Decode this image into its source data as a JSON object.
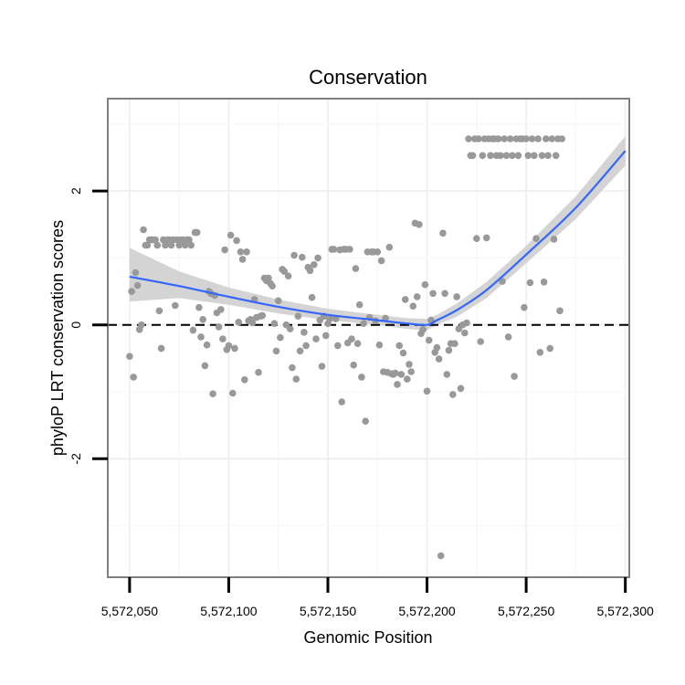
{
  "colors": {
    "points": "#999999",
    "smooth_line": "#3366FF",
    "ribbon": "#cccccc",
    "zero_line": "#000000",
    "panel_border": "#7f7f7f",
    "grid_major": "#f0f0f0",
    "grid_minor": "#f8f8f8"
  },
  "chart_data": {
    "type": "scatter",
    "title": "Conservation",
    "xlabel": "Genomic Position",
    "ylabel": "phyloP LRT conservation scores",
    "xlim": [
      5572039,
      5572302
    ],
    "ylim": [
      -3.77,
      3.38
    ],
    "x_ticks": [
      5572050,
      5572100,
      5572150,
      5572200,
      5572250,
      5572300
    ],
    "x_tick_labels": [
      "5,572,050",
      "5,572,100",
      "5,572,150",
      "5,572,200",
      "5,572,250",
      "5,572,300"
    ],
    "y_ticks": [
      -2,
      0,
      2
    ],
    "y_tick_labels": [
      "-2",
      "0",
      "2"
    ],
    "reference_line": {
      "y": 0,
      "style": "dashed"
    },
    "grid": true,
    "points": [
      [
        5572050,
        -0.47
      ],
      [
        5572051,
        0.5
      ],
      [
        5572052,
        -0.78
      ],
      [
        5572053,
        0.78
      ],
      [
        5572054,
        0.59
      ],
      [
        5572055,
        -0.07
      ],
      [
        5572056,
        0.0
      ],
      [
        5572057,
        1.42
      ],
      [
        5572058,
        1.19
      ],
      [
        5572059,
        1.19
      ],
      [
        5572060,
        1.27
      ],
      [
        5572061,
        1.27
      ],
      [
        5572062,
        1.27
      ],
      [
        5572063,
        1.27
      ],
      [
        5572064,
        1.19
      ],
      [
        5572065,
        0.21
      ],
      [
        5572066,
        -0.35
      ],
      [
        5572067,
        1.27
      ],
      [
        5572068,
        1.19
      ],
      [
        5572069,
        1.27
      ],
      [
        5572070,
        1.27
      ],
      [
        5572071,
        1.19
      ],
      [
        5572072,
        1.27
      ],
      [
        5572073,
        0.29
      ],
      [
        5572074,
        1.27
      ],
      [
        5572075,
        1.19
      ],
      [
        5572076,
        1.27
      ],
      [
        5572077,
        1.27
      ],
      [
        5572078,
        1.19
      ],
      [
        5572079,
        1.27
      ],
      [
        5572080,
        1.27
      ],
      [
        5572081,
        1.19
      ],
      [
        5572082,
        -0.08
      ],
      [
        5572083,
        1.38
      ],
      [
        5572084,
        1.38
      ],
      [
        5572085,
        0.26
      ],
      [
        5572086,
        -0.18
      ],
      [
        5572087,
        0.08
      ],
      [
        5572088,
        -0.61
      ],
      [
        5572089,
        -0.3
      ],
      [
        5572090,
        0.5
      ],
      [
        5572091,
        0.47
      ],
      [
        5572092,
        -1.03
      ],
      [
        5572093,
        0.44
      ],
      [
        5572094,
        0.18
      ],
      [
        5572095,
        -0.03
      ],
      [
        5572096,
        0.23
      ],
      [
        5572097,
        -0.21
      ],
      [
        5572098,
        1.12
      ],
      [
        5572099,
        -0.37
      ],
      [
        5572100,
        -0.31
      ],
      [
        5572101,
        1.34
      ],
      [
        5572102,
        -1.02
      ],
      [
        5572103,
        -0.35
      ],
      [
        5572104,
        1.26
      ],
      [
        5572105,
        0.04
      ],
      [
        5572106,
        1.09
      ],
      [
        5572107,
        0.98
      ],
      [
        5572108,
        -0.82
      ],
      [
        5572109,
        1.09
      ],
      [
        5572110,
        0.06
      ],
      [
        5572111,
        0.08
      ],
      [
        5572112,
        0.03
      ],
      [
        5572113,
        0.38
      ],
      [
        5572114,
        0.11
      ],
      [
        5572115,
        -0.71
      ],
      [
        5572116,
        0.13
      ],
      [
        5572117,
        0.14
      ],
      [
        5572118,
        0.7
      ],
      [
        5572119,
        0.66
      ],
      [
        5572120,
        0.7
      ],
      [
        5572121,
        0.62
      ],
      [
        5572122,
        0.58
      ],
      [
        5572123,
        0.02
      ],
      [
        5572124,
        -0.39
      ],
      [
        5572125,
        0.36
      ],
      [
        5572126,
        -0.19
      ],
      [
        5572127,
        0.83
      ],
      [
        5572128,
        0.8
      ],
      [
        5572129,
        0.0
      ],
      [
        5572130,
        0.73
      ],
      [
        5572131,
        -0.06
      ],
      [
        5572132,
        -0.64
      ],
      [
        5572133,
        1.04
      ],
      [
        5572134,
        -0.81
      ],
      [
        5572135,
        0.13
      ],
      [
        5572136,
        -0.39
      ],
      [
        5572137,
        1.01
      ],
      [
        5572138,
        -0.11
      ],
      [
        5572139,
        -0.31
      ],
      [
        5572140,
        0.86
      ],
      [
        5572141,
        0.81
      ],
      [
        5572142,
        0.41
      ],
      [
        5572143,
        0.9
      ],
      [
        5572144,
        -0.21
      ],
      [
        5572145,
        1.0
      ],
      [
        5572146,
        0.07
      ],
      [
        5572147,
        -0.62
      ],
      [
        5572148,
        0.13
      ],
      [
        5572149,
        -0.16
      ],
      [
        5572150,
        0.02
      ],
      [
        5572151,
        0.09
      ],
      [
        5572152,
        1.13
      ],
      [
        5572153,
        1.13
      ],
      [
        5572154,
        0.09
      ],
      [
        5572155,
        -0.31
      ],
      [
        5572156,
        1.12
      ],
      [
        5572157,
        -1.15
      ],
      [
        5572158,
        1.13
      ],
      [
        5572159,
        1.13
      ],
      [
        5572160,
        -0.27
      ],
      [
        5572161,
        1.13
      ],
      [
        5572162,
        -0.21
      ],
      [
        5572163,
        -0.6
      ],
      [
        5572164,
        0.84
      ],
      [
        5572165,
        -0.28
      ],
      [
        5572166,
        0.3
      ],
      [
        5572167,
        -0.78
      ],
      [
        5572168,
        0.02
      ],
      [
        5572169,
        -1.44
      ],
      [
        5572170,
        1.09
      ],
      [
        5572171,
        0.11
      ],
      [
        5572172,
        1.09
      ],
      [
        5572173,
        1.09
      ],
      [
        5572174,
        0.06
      ],
      [
        5572175,
        1.09
      ],
      [
        5572176,
        -0.3
      ],
      [
        5572177,
        0.96
      ],
      [
        5572178,
        -0.7
      ],
      [
        5572179,
        0.1
      ],
      [
        5572180,
        -0.71
      ],
      [
        5572181,
        1.16
      ],
      [
        5572182,
        -0.73
      ],
      [
        5572183,
        -0.74
      ],
      [
        5572184,
        -0.72
      ],
      [
        5572185,
        -0.89
      ],
      [
        5572186,
        -0.31
      ],
      [
        5572187,
        -0.74
      ],
      [
        5572188,
        -0.42
      ],
      [
        5572189,
        0.38
      ],
      [
        5572190,
        -0.81
      ],
      [
        5572191,
        -0.59
      ],
      [
        5572192,
        -0.7
      ],
      [
        5572193,
        0.28
      ],
      [
        5572194,
        1.52
      ],
      [
        5572195,
        0.42
      ],
      [
        5572196,
        1.5
      ],
      [
        5572197,
        -0.13
      ],
      [
        5572198,
        -0.07
      ],
      [
        5572199,
        0.6
      ],
      [
        5572200,
        -0.99
      ],
      [
        5572201,
        -0.23
      ],
      [
        5572202,
        0.07
      ],
      [
        5572203,
        0.47
      ],
      [
        5572204,
        -0.41
      ],
      [
        5572205,
        -0.34
      ],
      [
        5572206,
        -0.51
      ],
      [
        5572207,
        -3.45
      ],
      [
        5572208,
        1.37
      ],
      [
        5572209,
        0.47
      ],
      [
        5572210,
        -0.74
      ],
      [
        5572211,
        -0.38
      ],
      [
        5572212,
        -0.28
      ],
      [
        5572213,
        -1.04
      ],
      [
        5572214,
        -0.28
      ],
      [
        5572215,
        0.42
      ],
      [
        5572216,
        -0.06
      ],
      [
        5572217,
        -0.95
      ],
      [
        5572218,
        0.0
      ],
      [
        5572219,
        -0.12
      ],
      [
        5572220,
        0.03
      ],
      [
        5572221,
        2.78
      ],
      [
        5572222,
        2.53
      ],
      [
        5572223,
        2.53
      ],
      [
        5572224,
        2.78
      ],
      [
        5572225,
        1.29
      ],
      [
        5572226,
        2.78
      ],
      [
        5572227,
        -0.25
      ],
      [
        5572228,
        2.53
      ],
      [
        5572229,
        2.78
      ],
      [
        5572230,
        1.3
      ],
      [
        5572231,
        2.78
      ],
      [
        5572232,
        2.53
      ],
      [
        5572233,
        2.78
      ],
      [
        5572234,
        2.78
      ],
      [
        5572235,
        2.53
      ],
      [
        5572236,
        2.78
      ],
      [
        5572237,
        2.53
      ],
      [
        5572238,
        0.65
      ],
      [
        5572239,
        2.78
      ],
      [
        5572240,
        2.53
      ],
      [
        5572241,
        -0.18
      ],
      [
        5572242,
        2.78
      ],
      [
        5572243,
        2.53
      ],
      [
        5572244,
        -0.77
      ],
      [
        5572245,
        2.78
      ],
      [
        5572246,
        2.53
      ],
      [
        5572247,
        2.78
      ],
      [
        5572248,
        2.78
      ],
      [
        5572249,
        0.26
      ],
      [
        5572250,
        2.78
      ],
      [
        5572251,
        2.53
      ],
      [
        5572252,
        0.63
      ],
      [
        5572253,
        2.78
      ],
      [
        5572254,
        2.53
      ],
      [
        5572255,
        1.29
      ],
      [
        5572256,
        2.78
      ],
      [
        5572257,
        -0.41
      ],
      [
        5572258,
        2.53
      ],
      [
        5572259,
        0.64
      ],
      [
        5572260,
        2.78
      ],
      [
        5572261,
        2.53
      ],
      [
        5572262,
        -0.35
      ],
      [
        5572263,
        2.78
      ],
      [
        5572264,
        1.28
      ],
      [
        5572265,
        2.53
      ],
      [
        5572266,
        2.78
      ],
      [
        5572267,
        0.21
      ],
      [
        5572268,
        2.78
      ]
    ],
    "smooth_line": {
      "x": [
        5572050,
        5572075,
        5572100,
        5572125,
        5572150,
        5572175,
        5572190,
        5572200,
        5572205,
        5572215,
        5572230,
        5572250,
        5572275,
        5572300
      ],
      "y": [
        0.72,
        0.58,
        0.42,
        0.27,
        0.15,
        0.07,
        0.02,
        0.0,
        0.07,
        0.22,
        0.52,
        1.05,
        1.75,
        2.6
      ]
    },
    "ribbon": {
      "x": [
        5572050,
        5572075,
        5572100,
        5572125,
        5572150,
        5572175,
        5572190,
        5572200,
        5572205,
        5572215,
        5572230,
        5572250,
        5572275,
        5572300
      ],
      "ymin": [
        0.35,
        0.4,
        0.3,
        0.17,
        0.07,
        0.0,
        -0.06,
        -0.08,
        0.0,
        0.12,
        0.4,
        0.92,
        1.58,
        2.38
      ],
      "ymax": [
        1.15,
        0.8,
        0.56,
        0.38,
        0.24,
        0.15,
        0.1,
        0.09,
        0.15,
        0.32,
        0.64,
        1.18,
        1.92,
        2.82
      ]
    }
  }
}
